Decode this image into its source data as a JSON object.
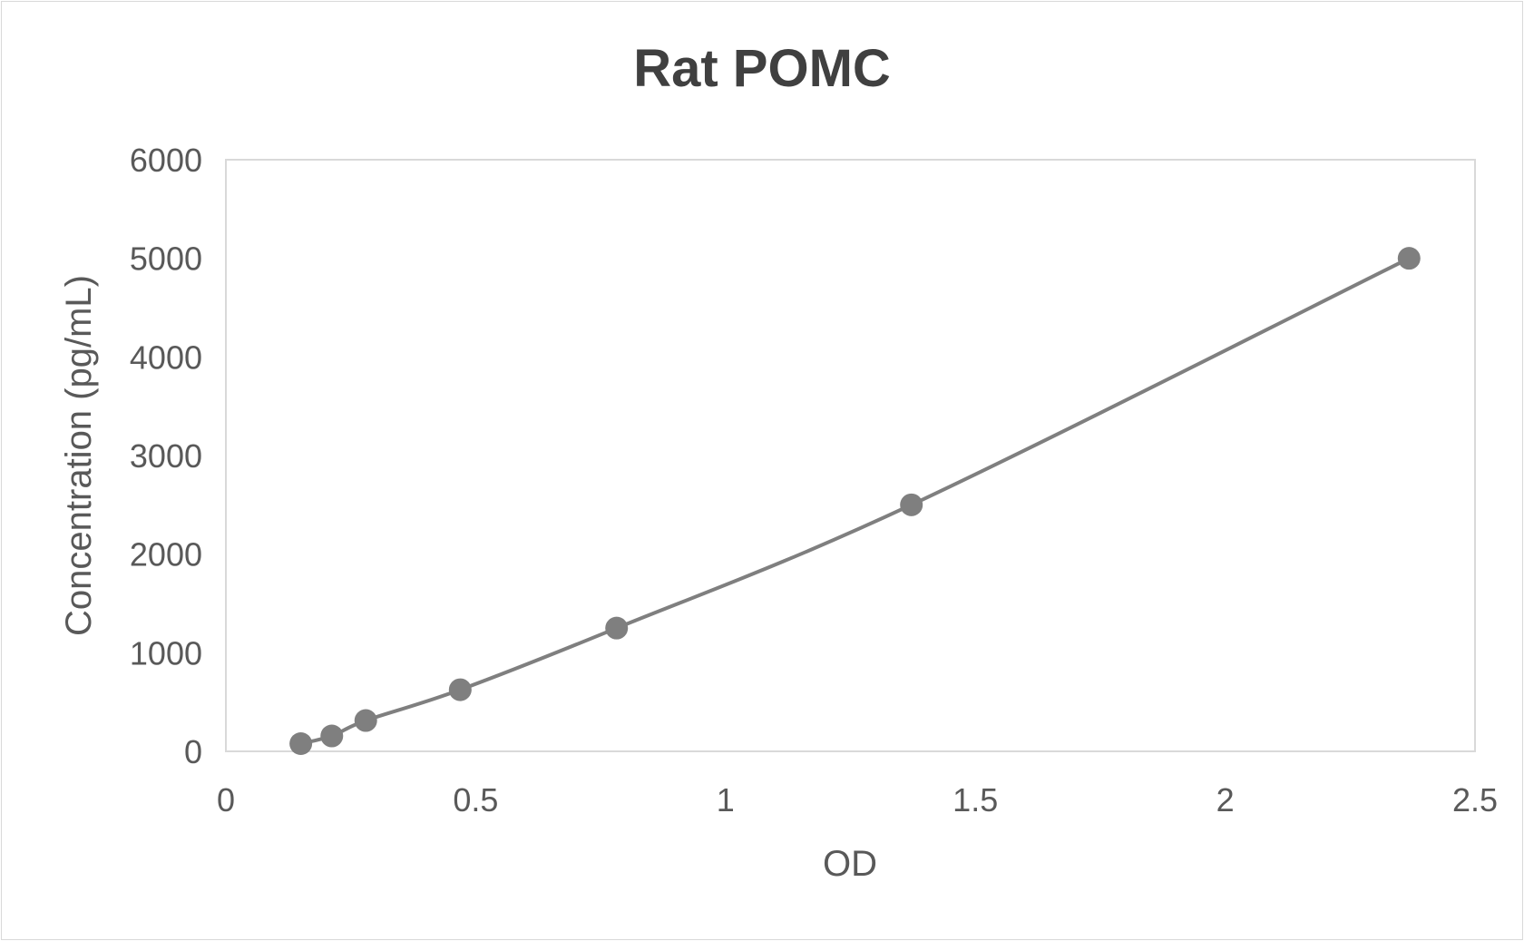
{
  "chart_data": {
    "type": "scatter",
    "title": "Rat POMC",
    "xlabel": "OD",
    "ylabel": "Concentration (pg/mL)",
    "xlim": [
      0,
      2.5
    ],
    "ylim": [
      0,
      6000
    ],
    "xticks": [
      "0",
      "0.5",
      "1",
      "1.5",
      "2",
      "2.5"
    ],
    "yticks": [
      "0",
      "1000",
      "2000",
      "3000",
      "4000",
      "5000",
      "6000"
    ],
    "grid": false,
    "smoothed_line": true,
    "color": "#7f7f7f",
    "points": [
      {
        "x": 0.15,
        "y": 78.125
      },
      {
        "x": 0.212,
        "y": 156.25
      },
      {
        "x": 0.28,
        "y": 312.5
      },
      {
        "x": 0.469,
        "y": 625
      },
      {
        "x": 0.782,
        "y": 1250
      },
      {
        "x": 1.372,
        "y": 2500
      },
      {
        "x": 2.368,
        "y": 5000
      }
    ]
  }
}
